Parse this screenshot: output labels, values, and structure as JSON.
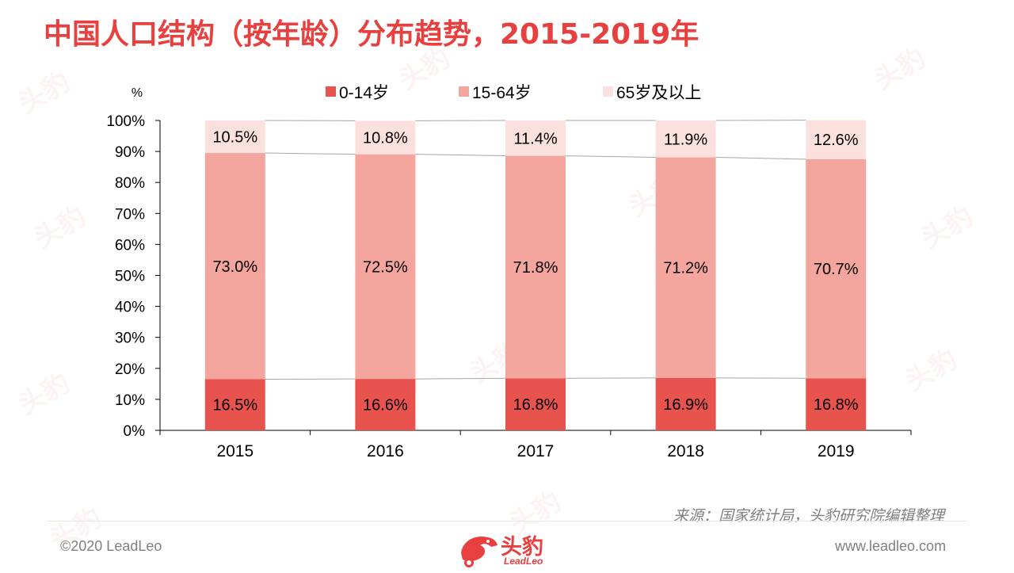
{
  "title": "中国人口结构（按年龄）分布趋势，2015-2019年",
  "source": "来源：国家统计局，头豹研究院编辑整理",
  "footer": {
    "copyright": "©2020 LeadLeo",
    "website": "www.leadleo.com",
    "logo_cn": "头豹",
    "logo_en": "LeadLeo"
  },
  "watermark_text": "头豹",
  "colors": {
    "title": "#e8403f",
    "series_0_14": "#e8534e",
    "series_15_64": "#f4a59d",
    "series_65_plus": "#fbe1dd"
  },
  "chart_data": {
    "type": "bar",
    "stacked": true,
    "percent_stacked": true,
    "title": "",
    "xlabel": "",
    "ylabel": "%",
    "ylim": [
      0,
      100
    ],
    "yticks": [
      "0%",
      "10%",
      "20%",
      "30%",
      "40%",
      "50%",
      "60%",
      "70%",
      "80%",
      "90%",
      "100%"
    ],
    "categories": [
      "2015",
      "2016",
      "2017",
      "2018",
      "2019"
    ],
    "legend_position": "top",
    "series_lines": true,
    "series": [
      {
        "name": "0-14岁",
        "values": [
          16.5,
          16.6,
          16.8,
          16.9,
          16.8
        ],
        "labels": [
          "16.5%",
          "16.6%",
          "16.8%",
          "16.9%",
          "16.8%"
        ],
        "color": "#e8534e"
      },
      {
        "name": "15-64岁",
        "values": [
          73.0,
          72.5,
          71.8,
          71.2,
          70.7
        ],
        "labels": [
          "73.0%",
          "72.5%",
          "71.8%",
          "71.2%",
          "70.7%"
        ],
        "color": "#f4a59d"
      },
      {
        "name": "65岁及以上",
        "values": [
          10.5,
          10.8,
          11.4,
          11.9,
          12.6
        ],
        "labels": [
          "10.5%",
          "10.8%",
          "11.4%",
          "11.9%",
          "12.6%"
        ],
        "color": "#fbe1dd"
      }
    ]
  }
}
